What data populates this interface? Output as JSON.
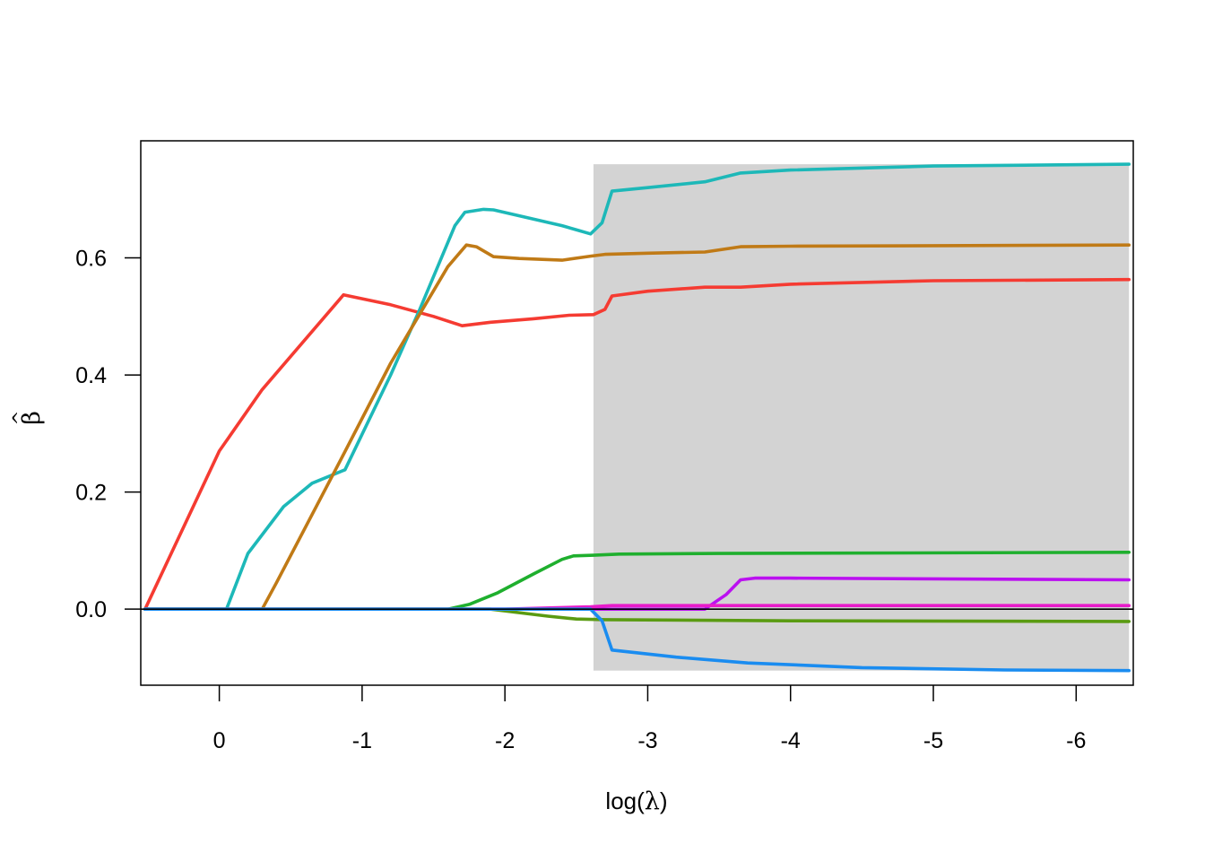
{
  "chart_data": {
    "type": "line",
    "xlabel": {
      "prefix": "log(",
      "symbol": "λ",
      "suffix": ")"
    },
    "ylabel": {
      "symbol": "β",
      "accent": "^"
    },
    "xlim": [
      0.55,
      -6.4
    ],
    "ylim": [
      -0.13,
      0.8
    ],
    "x_ticks": [
      0,
      -1,
      -2,
      -3,
      -4,
      -5,
      -6
    ],
    "x_tick_labels": [
      "0",
      "-1",
      "-2",
      "-3",
      "-4",
      "-5",
      "-6"
    ],
    "y_ticks": [
      0,
      0.2,
      0.4,
      0.6
    ],
    "y_tick_labels": [
      "0.0",
      "0.2",
      "0.4",
      "0.6"
    ],
    "grid": false,
    "legend": "none",
    "reference_line_y": 0,
    "shaded_region": {
      "x": [
        -2.62,
        -6.37
      ],
      "y": [
        -0.105,
        0.76
      ],
      "color": "#d3d3d3"
    },
    "series": [
      {
        "color": "#f53b32",
        "points": [
          [
            0.52,
            0
          ],
          [
            0.0,
            0.27
          ],
          [
            -0.3,
            0.375
          ],
          [
            -0.87,
            0.537
          ],
          [
            -1.2,
            0.52
          ],
          [
            -1.5,
            0.5
          ],
          [
            -1.7,
            0.484
          ],
          [
            -1.9,
            0.49
          ],
          [
            -2.2,
            0.496
          ],
          [
            -2.45,
            0.502
          ],
          [
            -2.62,
            0.503
          ],
          [
            -2.7,
            0.512
          ],
          [
            -2.75,
            0.535
          ],
          [
            -3.0,
            0.543
          ],
          [
            -3.4,
            0.55
          ],
          [
            -3.65,
            0.55
          ],
          [
            -4.0,
            0.555
          ],
          [
            -5.0,
            0.561
          ],
          [
            -6.37,
            0.563
          ]
        ]
      },
      {
        "color": "#1db8b8",
        "points": [
          [
            0.52,
            0
          ],
          [
            -0.05,
            0
          ],
          [
            -0.2,
            0.095
          ],
          [
            -0.45,
            0.175
          ],
          [
            -0.65,
            0.215
          ],
          [
            -0.88,
            0.238
          ],
          [
            -1.2,
            0.4
          ],
          [
            -1.4,
            0.51
          ],
          [
            -1.65,
            0.655
          ],
          [
            -1.72,
            0.678
          ],
          [
            -1.85,
            0.683
          ],
          [
            -1.92,
            0.682
          ],
          [
            -2.4,
            0.655
          ],
          [
            -2.6,
            0.641
          ],
          [
            -2.68,
            0.66
          ],
          [
            -2.75,
            0.714
          ],
          [
            -3.0,
            0.72
          ],
          [
            -3.4,
            0.73
          ],
          [
            -3.65,
            0.745
          ],
          [
            -4.0,
            0.75
          ],
          [
            -5.0,
            0.757
          ],
          [
            -6.37,
            0.76
          ]
        ]
      },
      {
        "color": "#c07a16",
        "points": [
          [
            0.52,
            0
          ],
          [
            -0.3,
            0
          ],
          [
            -0.4,
            0.045
          ],
          [
            -0.85,
            0.255
          ],
          [
            -1.2,
            0.42
          ],
          [
            -1.6,
            0.585
          ],
          [
            -1.73,
            0.622
          ],
          [
            -1.8,
            0.619
          ],
          [
            -1.92,
            0.602
          ],
          [
            -2.1,
            0.599
          ],
          [
            -2.4,
            0.596
          ],
          [
            -2.6,
            0.603
          ],
          [
            -2.7,
            0.606
          ],
          [
            -3.0,
            0.608
          ],
          [
            -3.4,
            0.61
          ],
          [
            -3.65,
            0.619
          ],
          [
            -4.0,
            0.62
          ],
          [
            -6.37,
            0.622
          ]
        ]
      },
      {
        "color": "#1faf2e",
        "points": [
          [
            0.52,
            0
          ],
          [
            -1.6,
            0
          ],
          [
            -1.75,
            0.008
          ],
          [
            -1.95,
            0.028
          ],
          [
            -2.2,
            0.06
          ],
          [
            -2.4,
            0.085
          ],
          [
            -2.48,
            0.091
          ],
          [
            -2.62,
            0.092
          ],
          [
            -2.8,
            0.094
          ],
          [
            -3.5,
            0.095
          ],
          [
            -6.37,
            0.097
          ]
        ]
      },
      {
        "color": "#bb10f0",
        "points": [
          [
            0.52,
            0
          ],
          [
            -3.4,
            0
          ],
          [
            -3.55,
            0.025
          ],
          [
            -3.65,
            0.05
          ],
          [
            -3.75,
            0.053
          ],
          [
            -4.0,
            0.053
          ],
          [
            -6.37,
            0.05
          ]
        ]
      },
      {
        "color": "#e81cca",
        "points": [
          [
            0.52,
            0
          ],
          [
            -2.0,
            0
          ],
          [
            -2.6,
            0.004
          ],
          [
            -2.75,
            0.006
          ],
          [
            -6.37,
            0.006
          ]
        ]
      },
      {
        "color": "#5a9b12",
        "points": [
          [
            0.52,
            0
          ],
          [
            -1.9,
            0
          ],
          [
            -2.1,
            -0.006
          ],
          [
            -2.3,
            -0.012
          ],
          [
            -2.5,
            -0.017
          ],
          [
            -2.7,
            -0.018
          ],
          [
            -4.0,
            -0.02
          ],
          [
            -6.37,
            -0.021
          ]
        ]
      },
      {
        "color": "#1a8cf0",
        "points": [
          [
            0.52,
            0
          ],
          [
            -2.6,
            0
          ],
          [
            -2.68,
            -0.02
          ],
          [
            -2.75,
            -0.07
          ],
          [
            -3.2,
            -0.082
          ],
          [
            -3.7,
            -0.092
          ],
          [
            -4.5,
            -0.1
          ],
          [
            -5.5,
            -0.104
          ],
          [
            -6.37,
            -0.105
          ]
        ]
      }
    ]
  }
}
